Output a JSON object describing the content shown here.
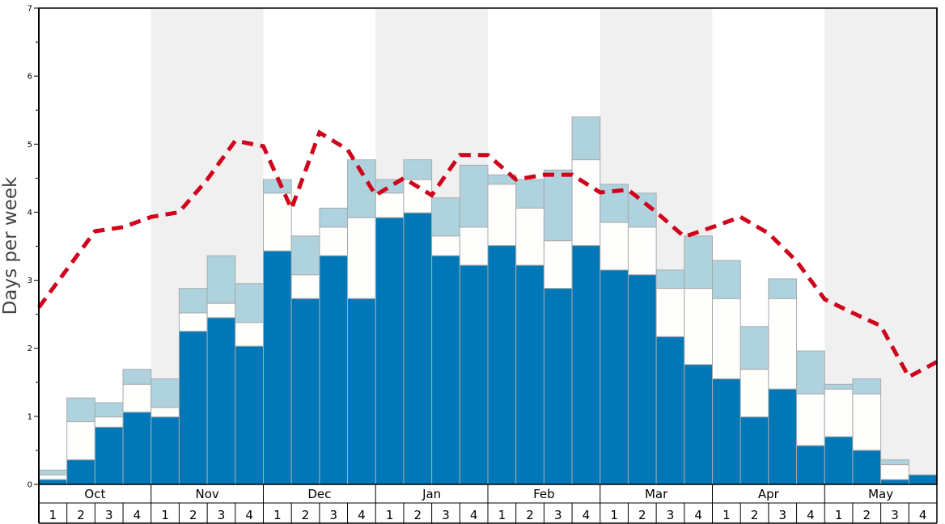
{
  "chart_data": {
    "type": "bar",
    "stacked": true,
    "ylabel": "Days per week",
    "ylim": [
      0,
      7
    ],
    "yticks": [
      0,
      1,
      2,
      3,
      4,
      5,
      6,
      7
    ],
    "months": [
      "Oct",
      "Nov",
      "Dec",
      "Jan",
      "Feb",
      "Mar",
      "Apr",
      "May"
    ],
    "weeks": [
      "1",
      "2",
      "3",
      "4"
    ],
    "colors": {
      "bottom": "#0077b6",
      "middle": "#fefefd",
      "top": "#aed3df",
      "line": "#d0021b",
      "shade": "#f0f0f0"
    },
    "series_cumulative": {
      "bottom": [
        0.07,
        0.36,
        0.84,
        1.06,
        0.99,
        2.25,
        2.45,
        2.03,
        3.43,
        2.73,
        3.36,
        2.73,
        3.92,
        3.99,
        3.36,
        3.22,
        3.51,
        3.22,
        2.88,
        3.51,
        3.15,
        3.08,
        2.17,
        1.76,
        1.55,
        0.99,
        1.4,
        0.57,
        0.7,
        0.5,
        0.07,
        0.14
      ],
      "middle": [
        0.14,
        0.92,
        0.99,
        1.47,
        1.13,
        2.52,
        2.66,
        2.38,
        4.28,
        3.08,
        3.78,
        3.92,
        4.28,
        4.48,
        3.65,
        3.78,
        4.41,
        4.06,
        3.58,
        4.77,
        3.85,
        3.78,
        2.88,
        2.88,
        2.73,
        1.69,
        2.73,
        1.33,
        1.4,
        1.33,
        0.29,
        0.14
      ],
      "top": [
        0.21,
        1.27,
        1.2,
        1.69,
        1.55,
        2.88,
        3.36,
        2.95,
        4.48,
        3.65,
        4.06,
        4.77,
        4.48,
        4.77,
        4.21,
        4.69,
        4.55,
        4.48,
        4.62,
        5.4,
        4.41,
        4.28,
        3.15,
        3.65,
        3.29,
        2.32,
        3.02,
        1.96,
        1.47,
        1.55,
        0.36,
        0.14
      ]
    },
    "dashed_line": [
      2.6,
      3.16,
      3.72,
      3.78,
      3.93,
      4.0,
      4.48,
      5.05,
      4.97,
      4.05,
      5.17,
      4.92,
      4.25,
      4.5,
      4.25,
      4.84,
      4.84,
      4.48,
      4.55,
      4.55,
      4.29,
      4.33,
      4.0,
      3.64,
      3.78,
      3.93,
      3.69,
      3.28,
      2.72,
      2.52,
      2.33,
      1.58,
      1.8
    ]
  }
}
